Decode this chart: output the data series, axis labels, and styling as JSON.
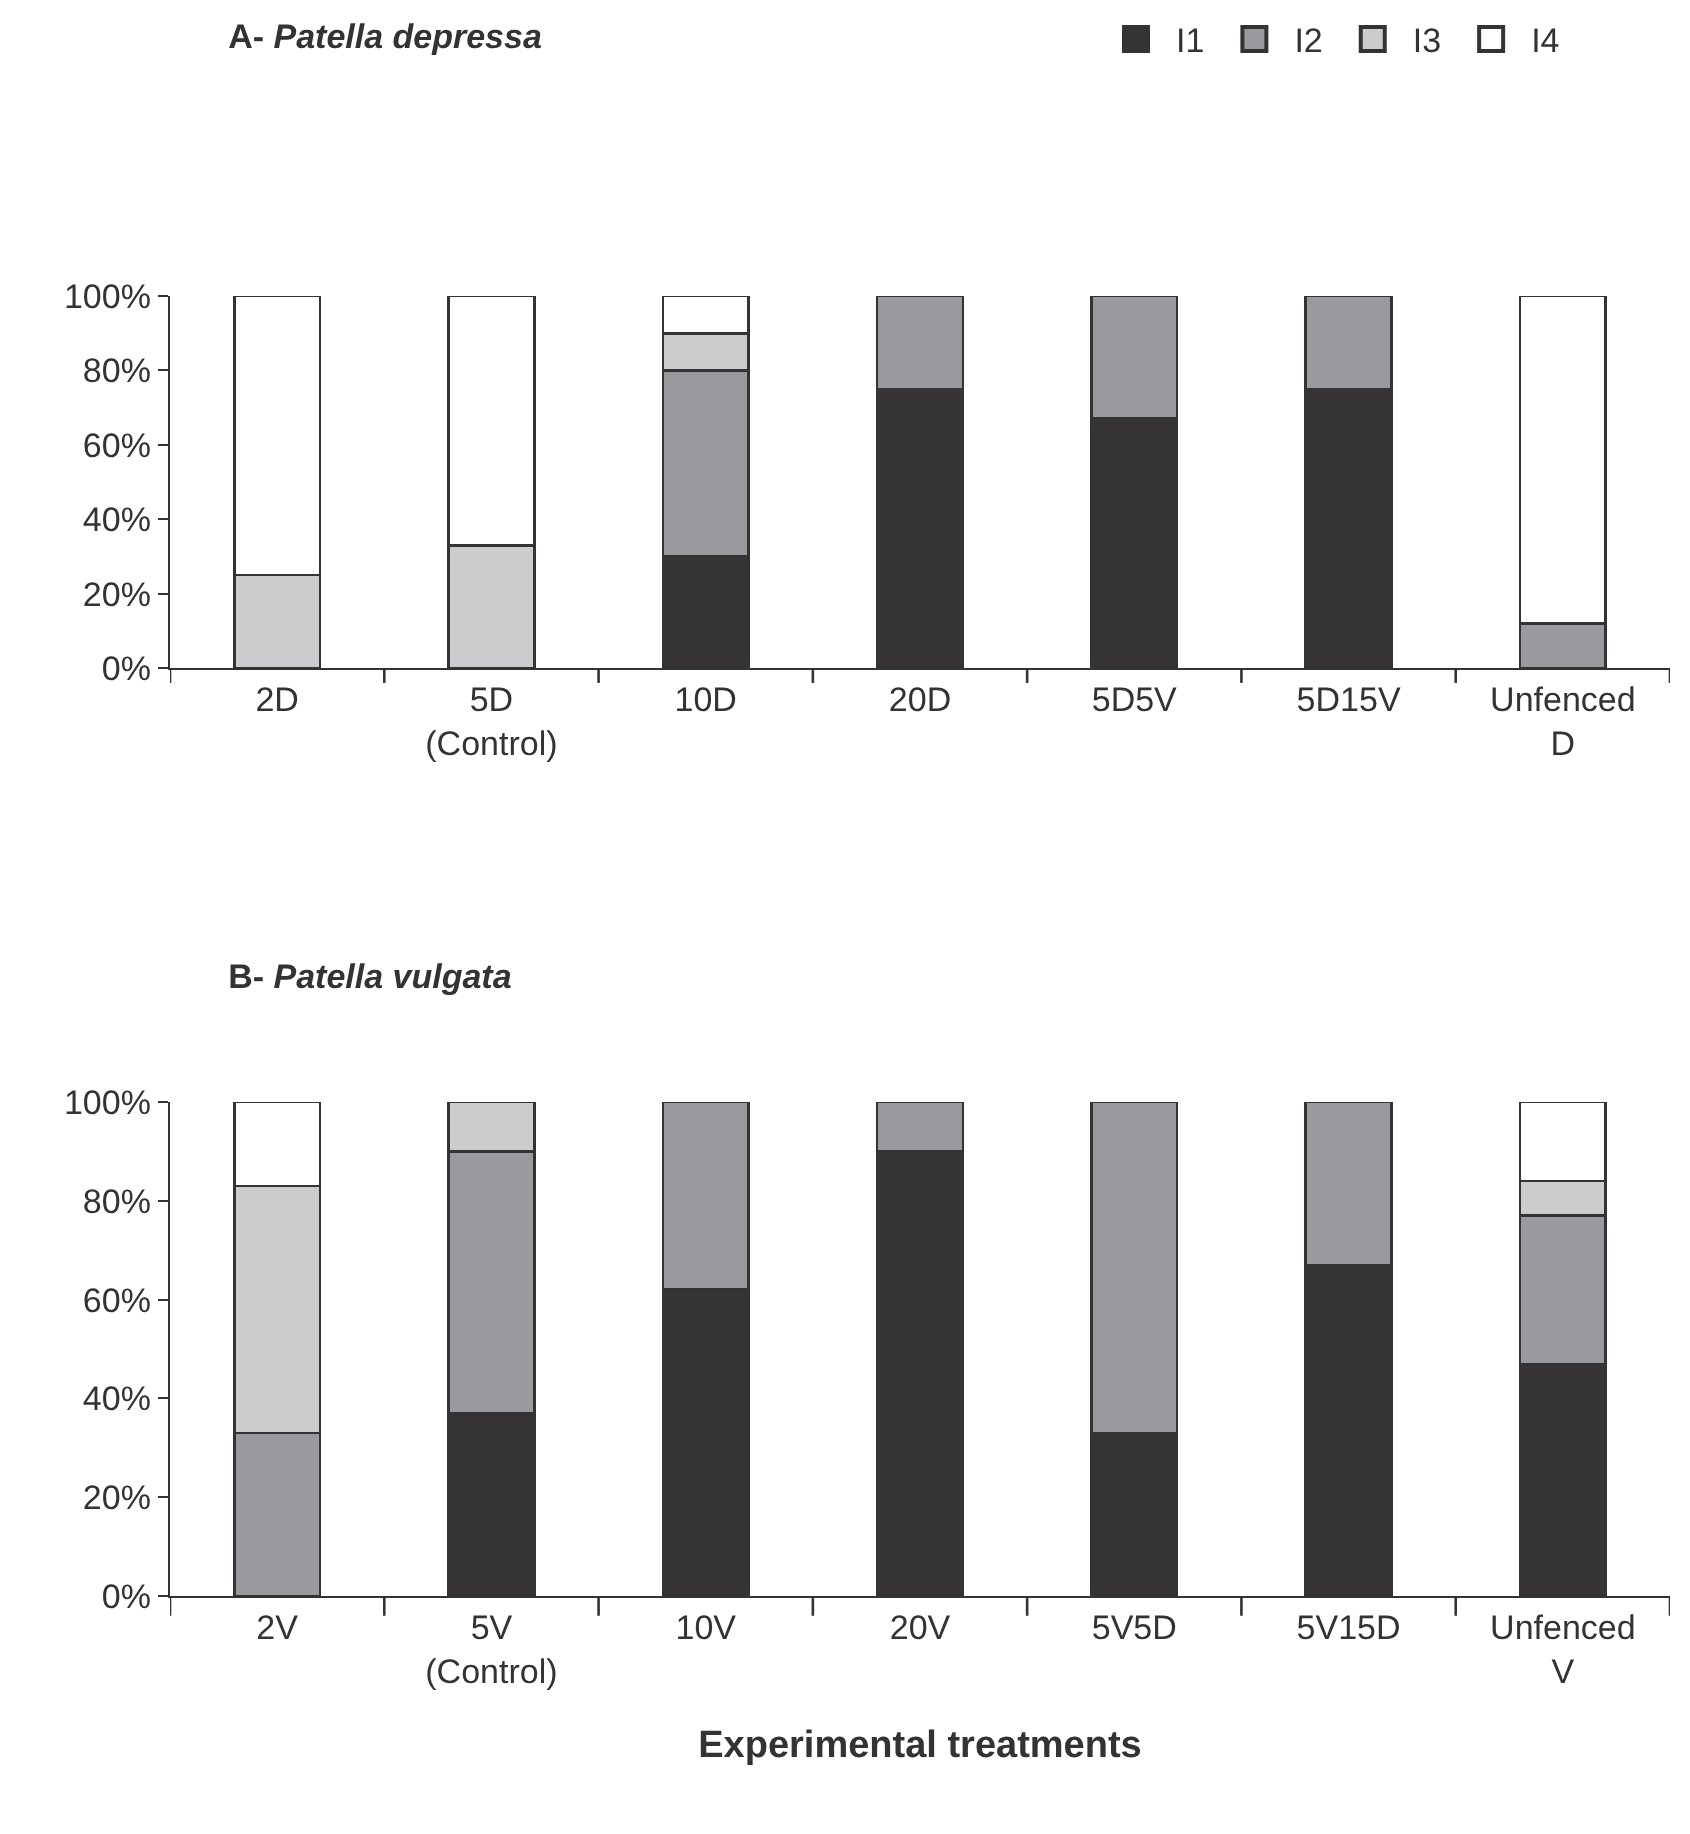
{
  "chart_data": [
    {
      "type": "bar",
      "title": "A- Patella depressa",
      "stacked": true,
      "legend": "top right",
      "grid": false,
      "categories": [
        "2D",
        "5D\n(Control)",
        "10D",
        "20D",
        "5D5V",
        "5D15V",
        "Unfenced\nD"
      ],
      "ylim": [
        0,
        100
      ],
      "yticks": [
        {
          "value": 0,
          "label": "0%"
        },
        {
          "value": 20,
          "label": "20%"
        },
        {
          "value": 40,
          "label": "40%"
        },
        {
          "value": 60,
          "label": "60%"
        },
        {
          "value": 80,
          "label": "80%"
        },
        {
          "value": 100,
          "label": "100%"
        }
      ],
      "series": [
        {
          "name": "I1",
          "color": "#363435",
          "values": [
            0,
            0,
            30,
            75,
            67,
            75,
            0
          ]
        },
        {
          "name": "I2",
          "color": "#999a9d",
          "values": [
            0,
            0,
            50,
            25,
            33,
            25,
            12
          ]
        },
        {
          "name": "I3",
          "color": "#cbcccd",
          "values": [
            25,
            33,
            10,
            0,
            0,
            0,
            0
          ]
        },
        {
          "name": "I4",
          "color": "#ffffff",
          "values": [
            75,
            67,
            10,
            0,
            0,
            0,
            88
          ]
        }
      ]
    },
    {
      "type": "bar",
      "title": "B- Patella vulgata",
      "xlabel": "Experimental treatments",
      "stacked": true,
      "grid": false,
      "categories": [
        "2V",
        "5V\n(Control)",
        "10V",
        "20V",
        "5V5D",
        "5V15D",
        "Unfenced\nV"
      ],
      "ylim": [
        0,
        100
      ],
      "yticks": [
        {
          "value": 0,
          "label": "0%"
        },
        {
          "value": 20,
          "label": "20%"
        },
        {
          "value": 40,
          "label": "40%"
        },
        {
          "value": 60,
          "label": "60%"
        },
        {
          "value": 80,
          "label": "80%"
        },
        {
          "value": 100,
          "label": "100%"
        }
      ],
      "series": [
        {
          "color": "#363435",
          "values": [
            0,
            37,
            62,
            90,
            33,
            67,
            47
          ]
        },
        {
          "color": "#999a9d",
          "values": [
            33,
            53,
            38,
            10,
            67,
            33,
            30
          ]
        },
        {
          "color": "#cbcccd",
          "values": [
            50,
            10,
            0,
            0,
            0,
            0,
            7
          ]
        },
        {
          "color": "#ffffff",
          "values": [
            17,
            0,
            0,
            0,
            0,
            0,
            16
          ]
        }
      ]
    }
  ]
}
